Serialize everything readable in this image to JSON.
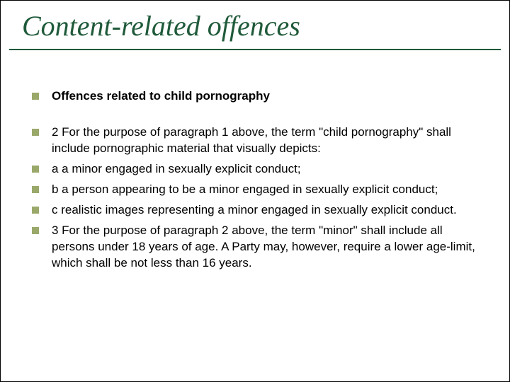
{
  "colors": {
    "title_color": "#1f5a3a",
    "underline_color": "#1f5a3a",
    "bullet_color": "#9aa86a",
    "text_color": "#000000",
    "background_color": "#ffffff"
  },
  "typography": {
    "title_font_family": "Times New Roman",
    "title_font_style": "italic",
    "title_font_size_pt": 30,
    "body_font_family": "Arial",
    "body_font_size_pt": 13
  },
  "title": "Content-related offences",
  "bullets": [
    {
      "text": "Offences related to child pornography",
      "bold": true,
      "gap_after": true
    },
    {
      "text": "2    For the purpose of paragraph 1 above, the term \"child pornography\" shall include pornographic material that visually depicts:",
      "bold": false,
      "gap_after": false
    },
    {
      "text": "a    a minor engaged in sexually explicit conduct;",
      "bold": false,
      "gap_after": false
    },
    {
      "text": "b    a person appearing to be a minor engaged in sexually explicit conduct;",
      "bold": false,
      "gap_after": false
    },
    {
      "text": "c    realistic images representing a minor engaged in sexually explicit conduct.",
      "bold": false,
      "gap_after": false
    },
    {
      "text": "3    For the purpose of paragraph 2 above, the term \"minor\" shall include all persons under 18 years of age. A Party may, however, require a lower age-limit, which shall be not less than 16 years.",
      "bold": false,
      "gap_after": false
    }
  ]
}
